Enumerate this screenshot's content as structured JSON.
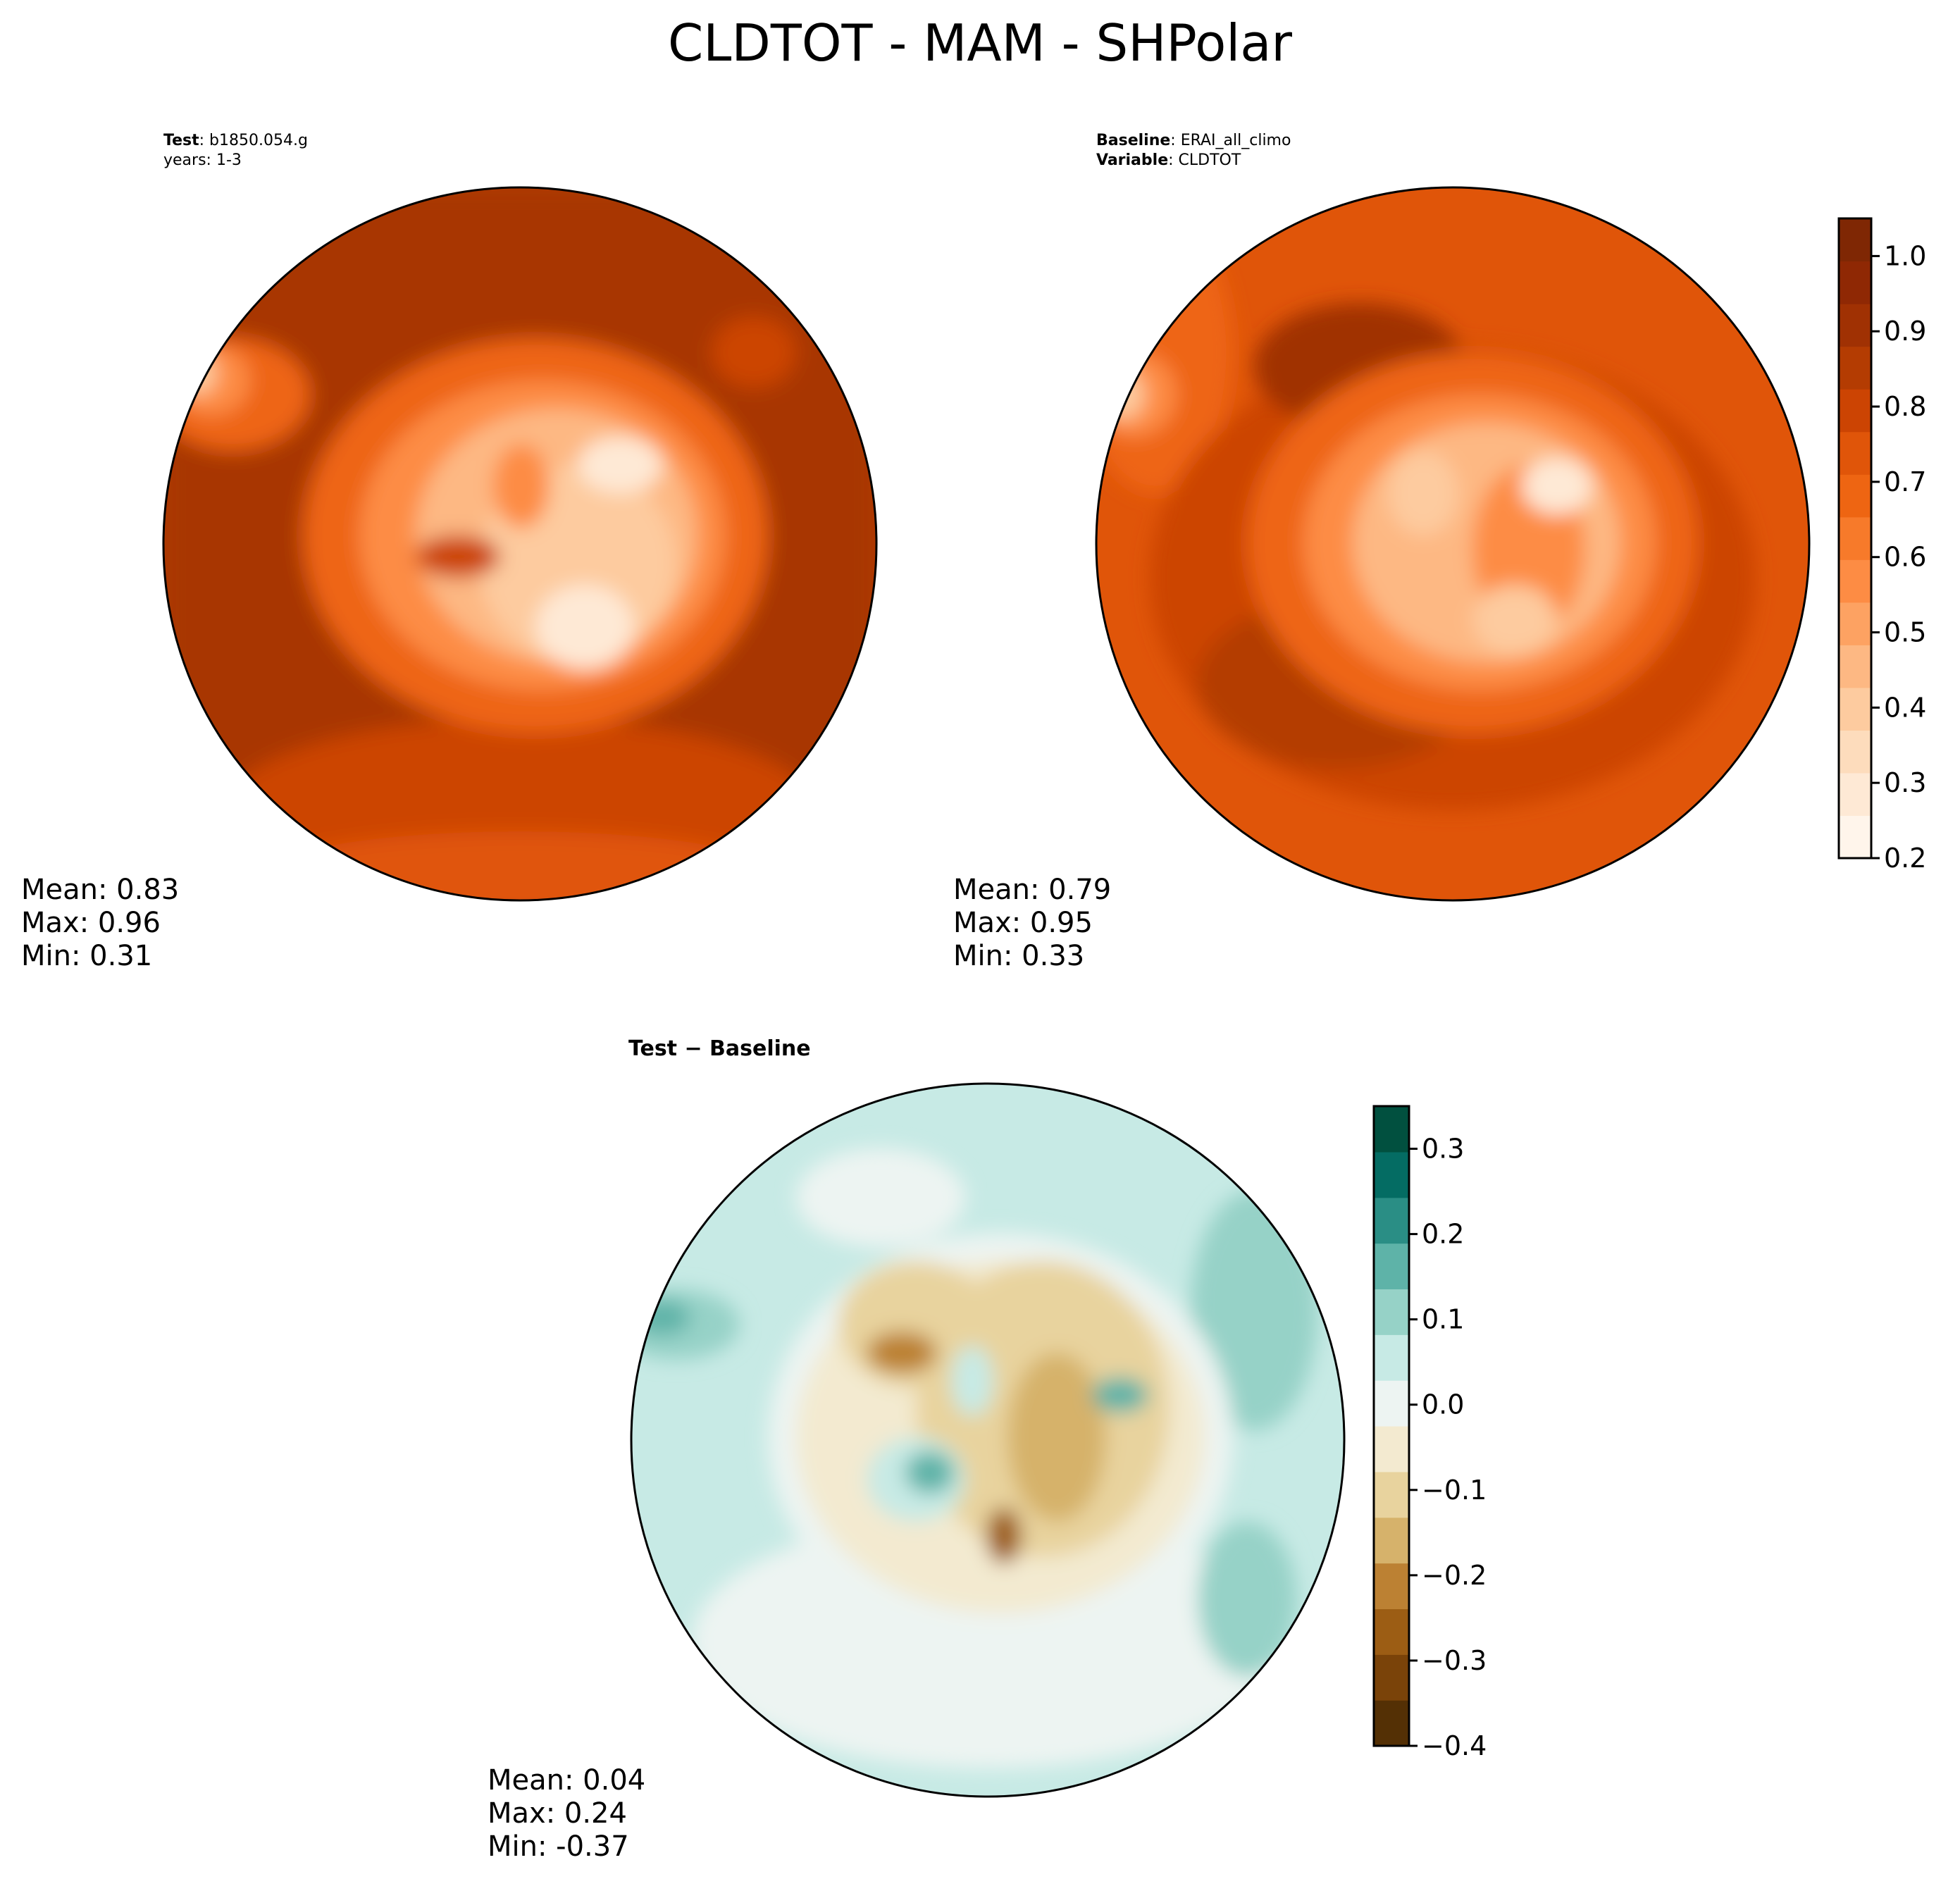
{
  "title": "CLDTOT - MAM - SHPolar",
  "panels": {
    "test": {
      "header_line1_bold": "Test",
      "header_line1_rest": ": b1850.054.g",
      "header_line2": "years: 1-3",
      "stats": {
        "mean": "Mean:  0.83",
        "max": "Max:  0.96",
        "min": "Min:  0.31"
      }
    },
    "baseline": {
      "header_line1_bold": "Baseline",
      "header_line1_rest": ": ERAI_all_climo",
      "header_line2_bold": "Variable",
      "header_line2_rest": ": CLDTOT",
      "stats": {
        "mean": "Mean:  0.79",
        "max": "Max:  0.95",
        "min": "Min:  0.33"
      }
    },
    "diff": {
      "header": "Test − Baseline",
      "stats": {
        "mean": "Mean:  0.04",
        "max": "Max:  0.24",
        "min": "Min: -0.37"
      }
    }
  },
  "chart_data": [
    {
      "type": "heatmap",
      "panel": "Test",
      "variable": "CLDTOT",
      "season": "MAM",
      "projection": "south polar stereographic",
      "colormap": "Oranges",
      "mean": 0.83,
      "max": 0.96,
      "min": 0.31,
      "levels": [
        0.2,
        0.25,
        0.3,
        0.35,
        0.4,
        0.45,
        0.5,
        0.55,
        0.6,
        0.65,
        0.7,
        0.75,
        0.8,
        0.85,
        0.9,
        0.95,
        1.0,
        1.05
      ]
    },
    {
      "type": "heatmap",
      "panel": "Baseline",
      "variable": "CLDTOT",
      "season": "MAM",
      "projection": "south polar stereographic",
      "colormap": "Oranges",
      "mean": 0.79,
      "max": 0.95,
      "min": 0.33,
      "colorbar": {
        "range": [
          0.2,
          1.05
        ],
        "ticks": [
          "0.2",
          "0.3",
          "0.4",
          "0.5",
          "0.6",
          "0.7",
          "0.8",
          "0.9",
          "1.0"
        ]
      }
    },
    {
      "type": "heatmap",
      "panel": "Test − Baseline",
      "variable": "CLDTOT",
      "season": "MAM",
      "projection": "south polar stereographic",
      "colormap": "BrBG",
      "mean": 0.04,
      "max": 0.24,
      "min": -0.37,
      "colorbar": {
        "range": [
          -0.4,
          0.35
        ],
        "ticks": [
          "−0.4",
          "−0.3",
          "−0.2",
          "−0.1",
          "0.0",
          "0.1",
          "0.2",
          "0.3"
        ]
      }
    }
  ],
  "colors": {
    "oranges": [
      "#fff5eb",
      "#fee9d5",
      "#fddcbc",
      "#fdcb9f",
      "#fdb883",
      "#fda262",
      "#fd8c44",
      "#f77a2a",
      "#ee6512",
      "#e05509",
      "#cc4403",
      "#b43c02",
      "#a03103",
      "#8f2804",
      "#7f2704"
    ],
    "brbg": [
      "#543005",
      "#7a4309",
      "#9c5d14",
      "#bc8133",
      "#d6b26b",
      "#e8d39e",
      "#f3ead0",
      "#edf4f2",
      "#c7eae5",
      "#96d2c7",
      "#5eb3a8",
      "#2a8e85",
      "#046c63",
      "#01503f"
    ]
  }
}
